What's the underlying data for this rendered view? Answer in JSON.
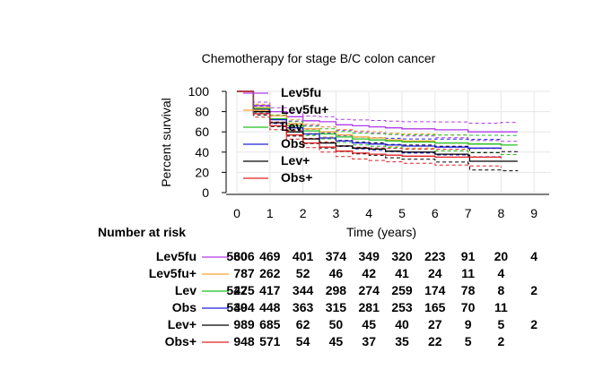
{
  "chart_data": {
    "type": "line",
    "title": "Chemotherapy for stage B/C colon cancer",
    "xlabel": "Time (years)",
    "ylabel": "Percent survival",
    "xlim": [
      0,
      9
    ],
    "ylim": [
      0,
      100
    ],
    "x_ticks": [
      "0",
      "1",
      "2",
      "3",
      "4",
      "5",
      "6",
      "7",
      "8",
      "9"
    ],
    "y_ticks": [
      "0",
      "20",
      "40",
      "60",
      "80",
      "100"
    ],
    "grid": true,
    "legend_position": "top-center",
    "confidence_bands": true,
    "series": [
      {
        "name": "Lev5fu",
        "color": "#b03be8",
        "x": [
          0,
          0.5,
          1,
          1.5,
          2,
          2.5,
          3,
          3.5,
          4,
          4.5,
          5,
          6,
          7,
          8,
          8.5
        ],
        "values": [
          100,
          86,
          80,
          75,
          71,
          70,
          67,
          66,
          65,
          64,
          63,
          62,
          60,
          60,
          60
        ]
      },
      {
        "name": "Lev5fu+",
        "color": "#f4a330",
        "x": [
          0,
          0.5,
          1,
          1.5,
          2,
          2.5,
          3,
          3.5,
          4,
          4.5,
          5,
          6,
          7,
          8
        ],
        "values": [
          100,
          84,
          76,
          68,
          63,
          60,
          57,
          55,
          54,
          52,
          51,
          49,
          48,
          47
        ]
      },
      {
        "name": "Lev",
        "color": "#20c020",
        "x": [
          0,
          0.5,
          1,
          1.5,
          2,
          2.5,
          3,
          3.5,
          4,
          4.5,
          5,
          6,
          7,
          8,
          8.5
        ],
        "values": [
          100,
          83,
          73,
          66,
          61,
          58,
          55,
          53,
          52,
          51,
          50,
          49,
          48,
          47,
          47
        ]
      },
      {
        "name": "Obs",
        "color": "#2020d8",
        "x": [
          0,
          0.5,
          1,
          1.5,
          2,
          2.5,
          3,
          3.5,
          4,
          4.5,
          5,
          6,
          7,
          8
        ],
        "values": [
          100,
          82,
          72,
          64,
          58,
          54,
          51,
          49,
          48,
          47,
          46,
          45,
          44,
          43
        ]
      },
      {
        "name": "Lev+",
        "color": "#000000",
        "x": [
          0,
          0.5,
          1,
          1.5,
          2,
          2.5,
          3,
          3.5,
          4,
          4.5,
          5,
          6,
          7,
          7.05,
          8,
          8.5
        ],
        "values": [
          100,
          80,
          69,
          60,
          53,
          49,
          46,
          44,
          43,
          41,
          40,
          38,
          37,
          31,
          31,
          31
        ]
      },
      {
        "name": "Obs+",
        "color": "#e02020",
        "x": [
          0,
          0.5,
          1,
          1.5,
          2,
          2.5,
          3,
          3.5,
          4,
          4.5,
          5,
          6,
          7,
          8
        ],
        "values": [
          100,
          78,
          66,
          57,
          49,
          45,
          41,
          39,
          38,
          37,
          36,
          35,
          35,
          34
        ]
      }
    ],
    "risk_table": {
      "header": "Number at risk",
      "time_points": [
        0,
        1,
        2,
        3,
        4,
        5,
        6,
        7,
        8,
        9
      ],
      "rows": [
        {
          "label": "Lev5fu",
          "color": "#b03be8",
          "counts": [
            "530",
            "",
            "401",
            "374",
            "349",
            "320",
            "223",
            "91",
            "20",
            "4"
          ],
          "overlap": [
            "606",
            "469"
          ]
        },
        {
          "label": "Lev5fu+",
          "color": "#f4a330",
          "counts": [
            "",
            "",
            "52",
            "46",
            "42",
            "41",
            "24",
            "11",
            "4",
            ""
          ],
          "overlap": [
            "787",
            "262"
          ]
        },
        {
          "label": "Lev",
          "color": "#20c020",
          "counts": [
            "522",
            "",
            "344",
            "298",
            "274",
            "259",
            "174",
            "78",
            "8",
            "2"
          ],
          "overlap": [
            "475",
            "417"
          ]
        },
        {
          "label": "Obs",
          "color": "#2020d8",
          "counts": [
            "530",
            "",
            "363",
            "315",
            "281",
            "253",
            "165",
            "70",
            "11",
            ""
          ],
          "overlap": [
            "494",
            "448"
          ]
        },
        {
          "label": "Lev+",
          "color": "#000000",
          "counts": [
            "",
            "",
            "62",
            "50",
            "45",
            "40",
            "27",
            "9",
            "5",
            "2"
          ],
          "overlap": [
            "989",
            "685"
          ]
        },
        {
          "label": "Obs+",
          "color": "#e02020",
          "counts": [
            "",
            "",
            "54",
            "45",
            "37",
            "35",
            "22",
            "5",
            "2",
            ""
          ],
          "overlap": [
            "948",
            "571"
          ]
        }
      ]
    }
  }
}
